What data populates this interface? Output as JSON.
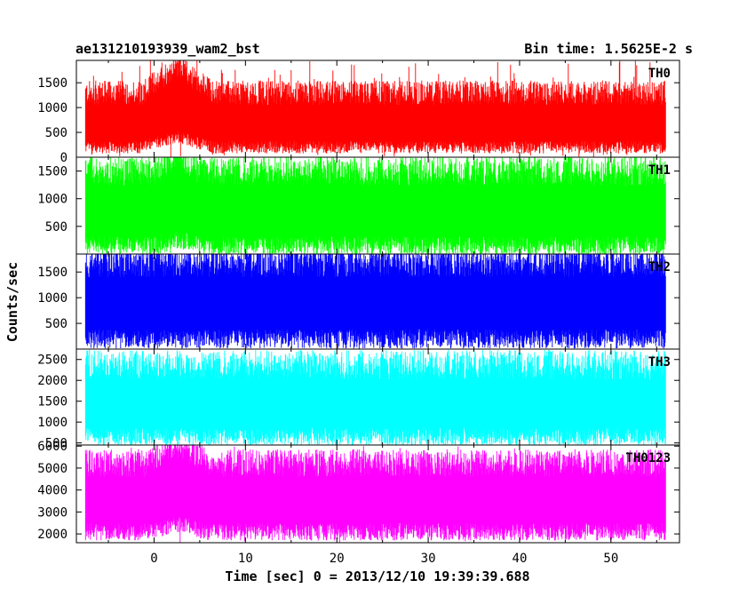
{
  "chart_data": {
    "type": "line",
    "title": "ae131210193939_wam2_bst",
    "subtitle": "Bin time: 1.5625E-2 s",
    "xlabel": "Time [sec] 0 = 2013/12/10 19:39:39.688",
    "ylabel": "Counts/sec",
    "xlim": [
      -8.5,
      57.5
    ],
    "x_ticks": [
      0,
      10,
      20,
      30,
      40,
      50
    ],
    "x_range": [
      -7.5,
      56
    ],
    "bin_time_s": 0.015625,
    "grid": false,
    "panels": [
      {
        "name": "TH0",
        "color": "#ff0000",
        "ylim": [
          0,
          1950
        ],
        "y_ticks": [
          0,
          500,
          1000,
          1500
        ],
        "baseline": 700,
        "upper": 1250,
        "lower": 200,
        "peak": 1950,
        "burst": {
          "start": -1,
          "end": 7,
          "center": 2.5,
          "boost": 550
        }
      },
      {
        "name": "TH1",
        "color": "#00ff00",
        "ylim": [
          0,
          1750
        ],
        "y_ticks": [
          500,
          1000,
          1500
        ],
        "baseline": 850,
        "upper": 1450,
        "lower": 150,
        "peak": 1750,
        "burst": {
          "start": 0,
          "end": 5,
          "center": 2.5,
          "boost": 300
        }
      },
      {
        "name": "TH2",
        "color": "#0000ff",
        "ylim": [
          0,
          1850
        ],
        "y_ticks": [
          500,
          1000,
          1500
        ],
        "baseline": 950,
        "upper": 1650,
        "lower": 200,
        "peak": 1850,
        "burst": null
      },
      {
        "name": "TH3",
        "color": "#00ffff",
        "ylim": [
          450,
          2750
        ],
        "y_ticks": [
          500,
          1000,
          1500,
          2000,
          2500
        ],
        "baseline": 1500,
        "upper": 2300,
        "lower": 650,
        "peak": 2650,
        "burst": null
      },
      {
        "name": "TH0123",
        "color": "#ff00ff",
        "ylim": [
          1600,
          6050
        ],
        "y_ticks": [
          2000,
          3000,
          4000,
          5000,
          6000
        ],
        "baseline": 3700,
        "upper": 5100,
        "lower": 2100,
        "peak": 6000,
        "burst": {
          "start": -1,
          "end": 6,
          "center": 2.5,
          "boost": 900
        }
      }
    ]
  }
}
